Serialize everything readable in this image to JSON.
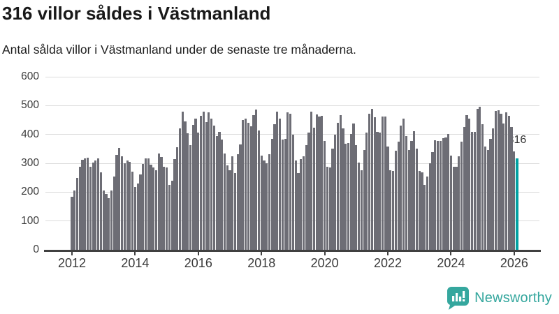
{
  "header": {
    "title": "316 villor såldes i Västmanland",
    "subtitle": "Antal sålda villor i Västmanland under de senaste tre månaderna."
  },
  "chart_data": {
    "type": "bar",
    "title": "316 villor såldes i Västmanland",
    "x_unit": "month",
    "x_start": "2012-01",
    "x_end": "2026-02",
    "values": [
      185,
      205,
      250,
      287,
      313,
      316,
      319,
      289,
      303,
      310,
      316,
      268,
      206,
      193,
      180,
      206,
      255,
      328,
      354,
      323,
      299,
      310,
      305,
      272,
      218,
      231,
      261,
      297,
      316,
      318,
      296,
      285,
      277,
      335,
      322,
      287,
      285,
      225,
      240,
      315,
      356,
      422,
      480,
      445,
      405,
      362,
      434,
      456,
      406,
      464,
      480,
      442,
      476,
      456,
      430,
      394,
      408,
      382,
      333,
      292,
      277,
      323,
      265,
      331,
      366,
      450,
      456,
      440,
      429,
      468,
      487,
      414,
      326,
      310,
      299,
      331,
      385,
      436,
      479,
      456,
      382,
      384,
      476,
      472,
      398,
      310,
      265,
      315,
      323,
      362,
      406,
      480,
      424,
      469,
      463,
      464,
      378,
      289,
      285,
      351,
      400,
      440,
      467,
      422,
      368,
      371,
      402,
      438,
      362,
      303,
      277,
      346,
      406,
      472,
      489,
      459,
      408,
      406,
      461,
      463,
      358,
      277,
      273,
      343,
      376,
      430,
      456,
      394,
      346,
      378,
      412,
      351,
      273,
      269,
      226,
      253,
      299,
      338,
      380,
      378,
      378,
      386,
      390,
      402,
      326,
      289,
      287,
      323,
      374,
      426,
      467,
      455,
      408,
      410,
      489,
      495,
      435,
      358,
      346,
      385,
      422,
      481,
      484,
      471,
      438,
      476,
      465,
      426,
      340,
      316
    ],
    "ylim": [
      0,
      600
    ],
    "y_ticks": [
      0,
      100,
      200,
      300,
      400,
      500,
      600
    ],
    "x_ticks": [
      {
        "label": "2012",
        "month_index": 0
      },
      {
        "label": "2014",
        "month_index": 24
      },
      {
        "label": "2016",
        "month_index": 48
      },
      {
        "label": "2018",
        "month_index": 72
      },
      {
        "label": "2020",
        "month_index": 96
      },
      {
        "label": "2022",
        "month_index": 120
      },
      {
        "label": "2024",
        "month_index": 144
      },
      {
        "label": "2026",
        "month_index": 168
      }
    ],
    "grid": "horizontal",
    "legend": "none",
    "bar_color": "#6d6d75",
    "highlight_color": "#00a2a2",
    "highlight_index": 169,
    "annotation": {
      "text": "316",
      "value": 316
    }
  },
  "footer": {
    "brand": "Newsworthy",
    "brand_color": "#35a79e",
    "logo_icon": "bar-chart-speech-bubble-icon"
  }
}
